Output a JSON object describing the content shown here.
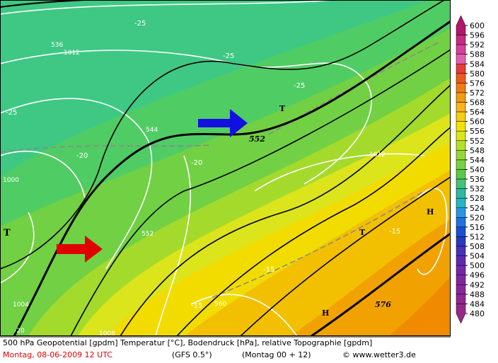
{
  "map": {
    "labels": [
      "-25",
      "536",
      "1012",
      "-25",
      "-25",
      "T",
      "-25",
      "552",
      "-20",
      "544",
      "-20",
      "1000",
      "T",
      "552",
      "T",
      "H",
      "-15",
      "1012",
      "-15",
      "-15",
      "560",
      "576",
      "H",
      "1004",
      "1008",
      "-20"
    ]
  },
  "colorbar": {
    "ticks": [
      600,
      596,
      592,
      588,
      584,
      580,
      576,
      572,
      568,
      564,
      560,
      556,
      552,
      548,
      544,
      540,
      536,
      532,
      528,
      524,
      520,
      516,
      512,
      508,
      504,
      500,
      496,
      492,
      488,
      484,
      480
    ],
    "colors": [
      "#b0186c",
      "#c82a86",
      "#d8409a",
      "#e060b0",
      "#e83c3c",
      "#ec5a1e",
      "#f07c10",
      "#f49a10",
      "#f8b418",
      "#f8cc10",
      "#f6e000",
      "#d8e818",
      "#b4e028",
      "#94d838",
      "#78d040",
      "#5cc848",
      "#44c078",
      "#30b8a0",
      "#28b4c8",
      "#2898e0",
      "#2070e0",
      "#1850d0",
      "#2838c0",
      "#4830b8",
      "#6028b0",
      "#7428a8",
      "#8028a0",
      "#882898",
      "#902890",
      "#982888"
    ]
  },
  "footer": {
    "description": "500 hPa Geopotential [gpdm] Temperatur [°C], Bodendruck [hPa], relative Topographie [gpdm]",
    "date": "Montag, 08-06-2009  12 UTC",
    "model": "(GFS 0.5°)",
    "run": "(Montag 00 + 12)",
    "copyright": "© www.wetter3.de"
  }
}
